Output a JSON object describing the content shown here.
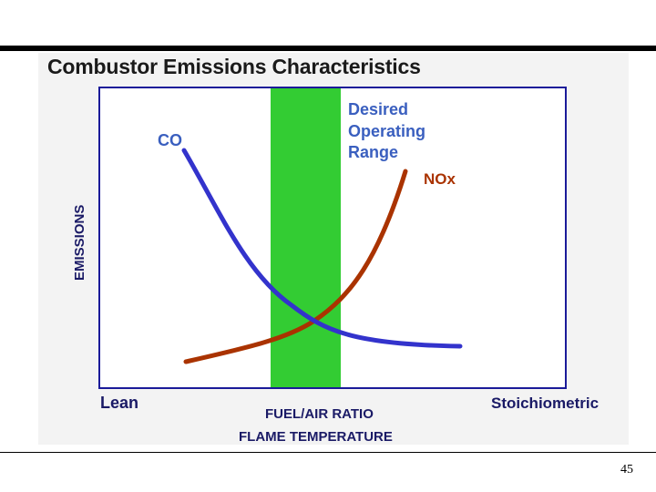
{
  "slide": {
    "title": "Combustor Emissions Characteristics",
    "page_number": "45"
  },
  "diagram": {
    "y_axis_label": "EMISSIONS",
    "x_axis_left_label": "Lean",
    "x_axis_right_label": "Stoichiometric",
    "x_axis_label_1": "FUEL/AIR RATIO",
    "x_axis_label_2": "FLAME TEMPERATURE",
    "band_label_lines": [
      "Desired",
      "Operating",
      "Range"
    ],
    "co_label": "CO",
    "nox_label": "NOx"
  },
  "colors": {
    "band": "#33cc33",
    "co_curve": "#3333cc",
    "nox_curve": "#aa3300",
    "label_blue": "#3a5fbf",
    "label_red": "#aa3300",
    "plot_border": "#1a1a99",
    "axis_text": "#1a1a66"
  }
}
